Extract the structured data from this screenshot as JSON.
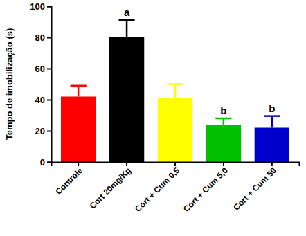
{
  "chart_data": {
    "type": "bar",
    "y_label": "Tempo de imobilização (s)",
    "categories": [
      "Controle",
      "Cort 20mg/Kg",
      "Cort + Cum 0,5",
      "Cort + Cum 5,0",
      "Cort + Cum 50"
    ],
    "values": [
      42,
      80,
      41,
      24,
      22
    ],
    "errors": [
      7,
      11,
      9,
      4,
      7.5
    ],
    "colors": [
      "#ff0000",
      "#000000",
      "#ffff00",
      "#00c000",
      "#0000cc"
    ],
    "annotations": [
      {
        "text": "a",
        "x": "Cort 20mg/Kg"
      },
      {
        "text": "b",
        "x": "Cort + Cum 5,0"
      },
      {
        "text": "b",
        "x": "Cort + Cum 50"
      }
    ],
    "ylim": [
      0,
      100
    ],
    "yticks": [
      0,
      20,
      40,
      60,
      80,
      100
    ],
    "grid": false
  }
}
